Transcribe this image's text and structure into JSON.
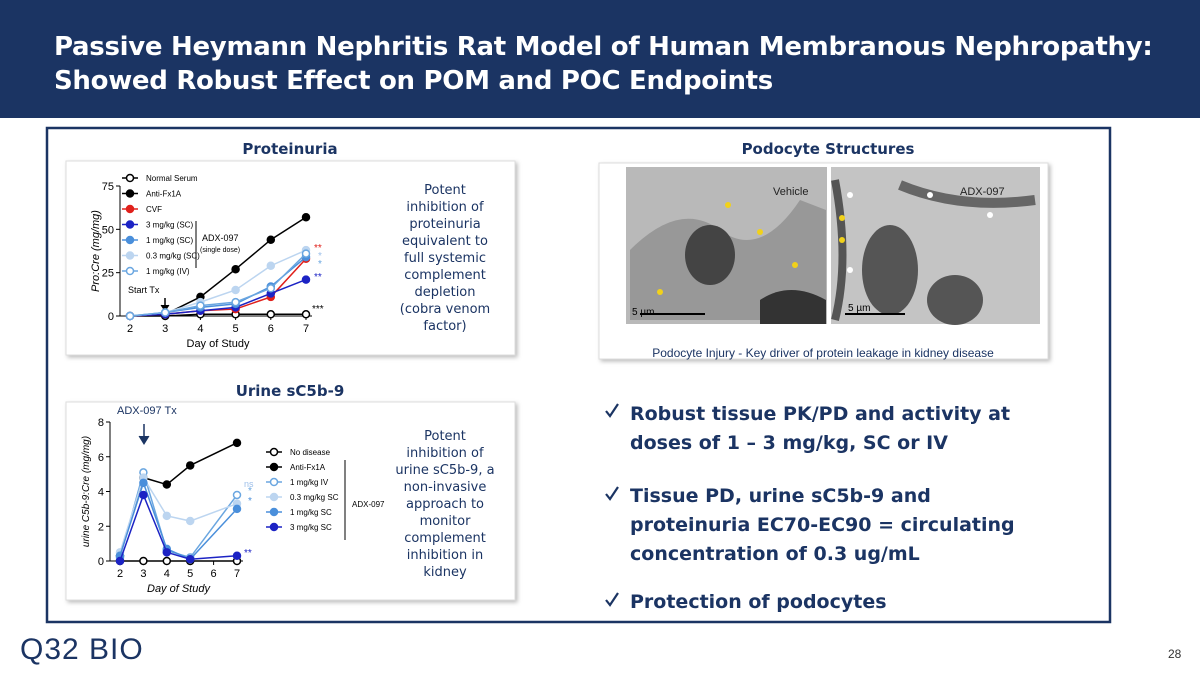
{
  "header": {
    "title_line1": "Passive Heymann Nephritis Rat Model of Human Membranous Nephropathy:",
    "title_line2": "Showed Robust Effect on POM and POC Endpoints"
  },
  "sections": {
    "proteinuria": "Proteinuria",
    "podocyte": "Podocyte Structures",
    "urine": "Urine sC5b-9"
  },
  "notes": {
    "proteinuria": "Potent inhibition of proteinuria equivalent to full systemic complement depletion (cobra venom factor)",
    "urine": "Potent inhibition of urine sC5b-9, a non-invasive approach to monitor complement inhibition in kidney"
  },
  "micrograph": {
    "left_label": "Vehicle",
    "right_label": "ADX-097",
    "scale_left": "5  µm",
    "scale_right": "5  µm",
    "caption": "Podocyte Injury - Key driver of protein leakage in kidney disease"
  },
  "bullets": [
    "Robust tissue PK/PD and activity at doses of 1 – 3 mg/kg, SC or IV",
    "Tissue PD, urine sC5b-9 and proteinuria EC70-EC90 = circulating concentration of 0.3 ug/mL",
    "Protection of podocytes"
  ],
  "footer": {
    "logo": "Q32 BIO",
    "page": "28"
  },
  "chart_data": [
    {
      "type": "line",
      "x_label": "Day of Study",
      "y_label": "Pro:Cre (mg/mg)",
      "x": [
        2,
        3,
        4,
        5,
        6,
        7
      ],
      "xlim": [
        2,
        7
      ],
      "xticks": [
        2,
        3,
        4,
        5,
        6,
        7
      ],
      "ylim": [
        0,
        75
      ],
      "yticks": [
        0,
        25,
        50,
        75
      ],
      "annotations": [
        "Start Tx",
        "ADX-097",
        "(single dose)",
        "**",
        "*",
        "*",
        "**",
        "***"
      ],
      "series": [
        {
          "name": "Normal Serum",
          "color": "#000000",
          "marker": "open",
          "values": [
            0,
            0,
            1,
            1,
            1,
            1
          ]
        },
        {
          "name": "Anti-Fx1A",
          "color": "#000000",
          "marker": "filled",
          "values": [
            0,
            1,
            11,
            27,
            44,
            57
          ]
        },
        {
          "name": "CVF",
          "color": "#e0201b",
          "marker": "filled",
          "values": [
            0,
            1,
            3,
            4,
            11,
            33
          ]
        },
        {
          "name": "3 mg/kg (SC)",
          "color": "#1c23c4",
          "marker": "filled",
          "values": [
            0,
            1,
            3,
            5,
            13,
            21
          ]
        },
        {
          "name": "1 mg/kg (SC)",
          "color": "#4a8fdb",
          "marker": "filled",
          "values": [
            0,
            2,
            5,
            7,
            17,
            34
          ]
        },
        {
          "name": "0.3 mg/kg (SC)",
          "color": "#bcd5f0",
          "marker": "filled",
          "values": [
            0,
            2,
            8,
            15,
            29,
            38
          ]
        },
        {
          "name": "1 mg/kg (IV)",
          "color": "#6aa6e0",
          "marker": "open",
          "values": [
            0,
            2,
            6,
            8,
            16,
            36
          ]
        }
      ]
    },
    {
      "type": "line",
      "x_label": "Day of Study",
      "y_label": "urine C5b-9:Cre (mg/mg)",
      "x": [
        2,
        3,
        4,
        5,
        7
      ],
      "xlim": [
        2,
        7
      ],
      "xticks": [
        2,
        3,
        4,
        5,
        6,
        7
      ],
      "ylim": [
        0,
        8
      ],
      "yticks": [
        0,
        2,
        4,
        6,
        8
      ],
      "annotations": [
        "ADX-097 Tx",
        "ns",
        "*",
        "*",
        "**",
        "ADX-097"
      ],
      "series": [
        {
          "name": "No disease",
          "color": "#000000",
          "marker": "open",
          "values": [
            0,
            0,
            0,
            0,
            0
          ]
        },
        {
          "name": "Anti-Fx1A",
          "color": "#000000",
          "marker": "filled",
          "values": [
            0.3,
            4.8,
            4.4,
            5.5,
            6.8
          ]
        },
        {
          "name": "1 mg/kg IV",
          "color": "#6aa6e0",
          "marker": "open",
          "values": [
            0.2,
            5.1,
            0.6,
            0.2,
            3.8
          ]
        },
        {
          "name": "0.3 mg/kg SC",
          "color": "#bcd5f0",
          "marker": "filled",
          "values": [
            0.5,
            4.8,
            2.6,
            2.3,
            3.3
          ]
        },
        {
          "name": "1 mg/kg SC",
          "color": "#4a8fdb",
          "marker": "filled",
          "values": [
            0.3,
            4.5,
            0.7,
            0.1,
            3.0
          ]
        },
        {
          "name": "3 mg/kg SC",
          "color": "#1c23c4",
          "marker": "filled",
          "values": [
            0,
            3.8,
            0.5,
            0.1,
            0.3
          ]
        }
      ]
    }
  ]
}
